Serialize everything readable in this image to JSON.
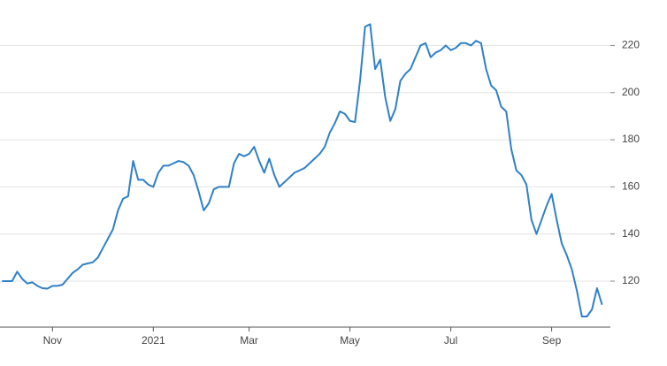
{
  "chart_data": {
    "type": "line",
    "categories": [
      null,
      null,
      null,
      null,
      null,
      null,
      null,
      null,
      null,
      null,
      "Nov",
      null,
      null,
      null,
      null,
      null,
      null,
      null,
      null,
      null,
      null,
      null,
      null,
      null,
      null,
      null,
      null,
      null,
      null,
      null,
      "2021",
      null,
      null,
      null,
      null,
      null,
      null,
      null,
      null,
      null,
      null,
      null,
      null,
      null,
      null,
      null,
      null,
      null,
      null,
      "Mar",
      null,
      null,
      null,
      null,
      null,
      null,
      null,
      null,
      null,
      null,
      null,
      null,
      null,
      null,
      null,
      null,
      null,
      null,
      null,
      "May",
      null,
      null,
      null,
      null,
      null,
      null,
      null,
      null,
      null,
      null,
      null,
      null,
      null,
      null,
      null,
      null,
      null,
      null,
      null,
      "Jul",
      null,
      null,
      null,
      null,
      null,
      null,
      null,
      null,
      null,
      null,
      null,
      null,
      null,
      null,
      null,
      null,
      null,
      null,
      null,
      "Sep",
      null,
      null,
      null,
      null,
      null,
      null,
      null,
      null,
      null,
      null
    ],
    "series": [
      {
        "color": "#2f80c8",
        "values": [
          120,
          120,
          120,
          124,
          121,
          119,
          119.5,
          118,
          117,
          116.8,
          118,
          118,
          118.5,
          121,
          123.5,
          125,
          127,
          127.5,
          128,
          130,
          134,
          138,
          142,
          150,
          155,
          156,
          171,
          163,
          163,
          161,
          160,
          166,
          169,
          169,
          170,
          171,
          170.5,
          169,
          165,
          158,
          150,
          153,
          159,
          160,
          160,
          160,
          170,
          174,
          173,
          174,
          177,
          171,
          166,
          172,
          165,
          160,
          162,
          164,
          166,
          167,
          168,
          170,
          172,
          174,
          177,
          183,
          187,
          192,
          191,
          188,
          187.5,
          205,
          228,
          229,
          210,
          214,
          198,
          188,
          193,
          205,
          208,
          210,
          215,
          220,
          221,
          215,
          217,
          218,
          220,
          218,
          219,
          221,
          221,
          220,
          222,
          221,
          210,
          203,
          201,
          194,
          192,
          176,
          167,
          165,
          161,
          146,
          140,
          146,
          152,
          157,
          146,
          136,
          131,
          125,
          116,
          105,
          105,
          108,
          117,
          110
        ]
      }
    ],
    "ylim": [
      100.5,
      239.3
    ],
    "yticks": [
      120,
      140,
      160,
      180,
      200,
      220
    ],
    "grid": true
  }
}
